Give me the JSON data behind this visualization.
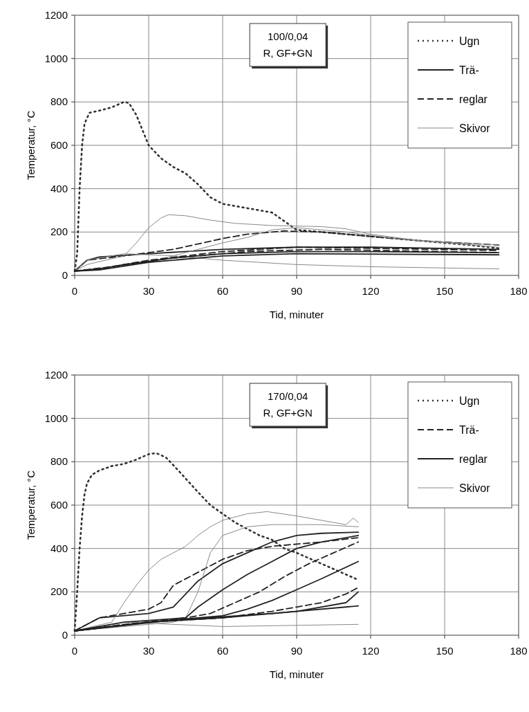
{
  "chart_data": [
    {
      "type": "line",
      "xlabel": "Tid, minuter",
      "ylabel": "Temperatur, °C",
      "annotations": [
        "100/0,04",
        "R, GF+GN"
      ],
      "xlim": [
        0,
        180
      ],
      "xticks": [
        0,
        30,
        60,
        90,
        120,
        150,
        180
      ],
      "ylim": [
        0,
        1200
      ],
      "yticks": [
        0,
        200,
        400,
        600,
        800,
        1000,
        1200
      ],
      "grid": true,
      "legend": "top right",
      "series": [
        {
          "name": "Ugn",
          "color": "#333333",
          "line_style": "dotted",
          "x": [
            0,
            1,
            2,
            3,
            4,
            6,
            10,
            15,
            20,
            22,
            25,
            30,
            35,
            40,
            45,
            50,
            55,
            60,
            70,
            80,
            85,
            90,
            100,
            110,
            120,
            140,
            160,
            172
          ],
          "values": [
            20,
            100,
            400,
            600,
            700,
            750,
            760,
            775,
            800,
            795,
            740,
            600,
            540,
            500,
            470,
            420,
            360,
            330,
            310,
            290,
            250,
            210,
            200,
            190,
            180,
            160,
            140,
            125
          ]
        },
        {
          "name": "Trä-",
          "color": "#222222",
          "line_style": "solid",
          "x": [
            0,
            5,
            10,
            30,
            60,
            90,
            120,
            172
          ],
          "values": [
            20,
            70,
            85,
            100,
            120,
            130,
            130,
            120
          ]
        },
        {
          "name": "reglar",
          "color": "#222222",
          "line_style": "dashed",
          "x": [
            0,
            5,
            20,
            40,
            60,
            70,
            85,
            100,
            120,
            140,
            172
          ],
          "values": [
            20,
            70,
            90,
            120,
            170,
            190,
            205,
            200,
            180,
            160,
            140
          ]
        },
        {
          "name": "Skivor",
          "color": "#888888",
          "line_style": "solid",
          "x": [
            0,
            5,
            20,
            25,
            30,
            35,
            38,
            45,
            55,
            65,
            80,
            100,
            110,
            120,
            140,
            172
          ],
          "values": [
            20,
            50,
            90,
            150,
            220,
            265,
            280,
            275,
            255,
            240,
            230,
            225,
            215,
            190,
            160,
            140
          ]
        },
        {
          "color": "#888888",
          "line_style": "solid",
          "x": [
            0,
            5,
            20,
            40,
            60,
            90,
            120,
            172
          ],
          "values": [
            20,
            70,
            100,
            90,
            70,
            50,
            40,
            30
          ]
        },
        {
          "color": "#888888",
          "line_style": "solid",
          "x": [
            0,
            30,
            60,
            70,
            80,
            90,
            110,
            130,
            172
          ],
          "values": [
            20,
            60,
            150,
            175,
            210,
            220,
            200,
            170,
            130
          ]
        },
        {
          "color": "#222222",
          "line_style": "solid",
          "x": [
            0,
            10,
            20,
            40,
            60,
            90,
            120,
            172
          ],
          "values": [
            20,
            30,
            50,
            80,
            100,
            110,
            110,
            105
          ]
        },
        {
          "color": "#222222",
          "line_style": "solid",
          "x": [
            0,
            10,
            30,
            60,
            90,
            172
          ],
          "values": [
            20,
            25,
            60,
            90,
            100,
            95
          ]
        },
        {
          "color": "#222222",
          "line_style": "dashed",
          "x": [
            0,
            10,
            30,
            60,
            90,
            120,
            172
          ],
          "values": [
            20,
            30,
            70,
            110,
            130,
            125,
            115
          ]
        },
        {
          "color": "#222222",
          "line_style": "dashed",
          "x": [
            0,
            15,
            40,
            70,
            100,
            172
          ],
          "values": [
            20,
            40,
            80,
            110,
            120,
            105
          ]
        }
      ]
    },
    {
      "type": "line",
      "xlabel": "Tid, minuter",
      "ylabel": "Temperatur, °C",
      "annotations": [
        "170/0,04",
        "R, GF+GN"
      ],
      "xlim": [
        0,
        180
      ],
      "xticks": [
        0,
        30,
        60,
        90,
        120,
        150,
        180
      ],
      "ylim": [
        0,
        1200
      ],
      "yticks": [
        0,
        200,
        400,
        600,
        800,
        1000,
        1200
      ],
      "grid": true,
      "legend": "top right",
      "series": [
        {
          "name": "Ugn",
          "color": "#333333",
          "line_style": "dotted",
          "x": [
            0,
            1,
            2,
            3,
            4,
            5,
            7,
            10,
            15,
            20,
            25,
            30,
            33,
            37,
            42,
            50,
            55,
            60,
            65,
            70,
            75,
            80,
            85,
            90,
            100,
            110,
            114
          ],
          "values": [
            20,
            200,
            400,
            550,
            650,
            700,
            740,
            760,
            780,
            790,
            810,
            835,
            840,
            820,
            760,
            660,
            600,
            560,
            520,
            490,
            460,
            440,
            400,
            380,
            330,
            280,
            260
          ]
        },
        {
          "name": "Trä-",
          "color": "#222222",
          "line_style": "dashed",
          "x": [
            0,
            10,
            20,
            30,
            35,
            40,
            50,
            60,
            70,
            80,
            90,
            100,
            115
          ],
          "values": [
            20,
            80,
            100,
            120,
            150,
            230,
            290,
            350,
            390,
            410,
            420,
            430,
            450
          ]
        },
        {
          "name": "reglar",
          "color": "#222222",
          "line_style": "solid",
          "x": [
            0,
            10,
            30,
            40,
            50,
            60,
            70,
            80,
            90,
            100,
            115
          ],
          "values": [
            20,
            80,
            100,
            130,
            250,
            330,
            380,
            430,
            460,
            470,
            475
          ]
        },
        {
          "name": "Skivor",
          "color": "#888888",
          "line_style": "solid",
          "x": [
            0,
            15,
            20,
            25,
            30,
            35,
            40,
            45,
            50,
            55,
            60,
            70,
            78,
            90,
            105,
            110,
            113,
            115
          ],
          "values": [
            20,
            60,
            150,
            230,
            300,
            350,
            380,
            410,
            460,
            500,
            530,
            560,
            570,
            550,
            520,
            510,
            540,
            520
          ]
        },
        {
          "color": "#888888",
          "line_style": "solid",
          "x": [
            0,
            40,
            45,
            50,
            55,
            60,
            70,
            80,
            100,
            115
          ],
          "values": [
            20,
            60,
            80,
            200,
            380,
            460,
            500,
            510,
            510,
            500
          ]
        },
        {
          "color": "#888888",
          "line_style": "solid",
          "x": [
            0,
            20,
            60,
            115
          ],
          "values": [
            20,
            60,
            40,
            50
          ]
        },
        {
          "color": "#222222",
          "line_style": "solid",
          "x": [
            0,
            20,
            45,
            50,
            60,
            70,
            80,
            90,
            100,
            115
          ],
          "values": [
            20,
            60,
            80,
            130,
            210,
            280,
            340,
            400,
            430,
            460
          ]
        },
        {
          "color": "#222222",
          "line_style": "dashed",
          "x": [
            0,
            20,
            45,
            55,
            65,
            75,
            85,
            95,
            105,
            115
          ],
          "values": [
            20,
            50,
            80,
            100,
            150,
            200,
            270,
            330,
            380,
            430
          ]
        },
        {
          "color": "#222222",
          "line_style": "solid",
          "x": [
            0,
            30,
            60,
            70,
            80,
            90,
            100,
            115
          ],
          "values": [
            20,
            60,
            90,
            120,
            160,
            210,
            260,
            340
          ]
        },
        {
          "color": "#222222",
          "line_style": "dashed",
          "x": [
            0,
            30,
            60,
            80,
            90,
            100,
            110,
            115
          ],
          "values": [
            20,
            60,
            80,
            110,
            130,
            150,
            190,
            220
          ]
        },
        {
          "color": "#222222",
          "line_style": "solid",
          "x": [
            0,
            30,
            60,
            90,
            110,
            115
          ],
          "values": [
            20,
            60,
            80,
            110,
            150,
            200
          ]
        },
        {
          "color": "#222222",
          "line_style": "solid",
          "x": [
            0,
            40,
            80,
            110,
            115
          ],
          "values": [
            20,
            70,
            100,
            130,
            135
          ]
        }
      ]
    }
  ]
}
